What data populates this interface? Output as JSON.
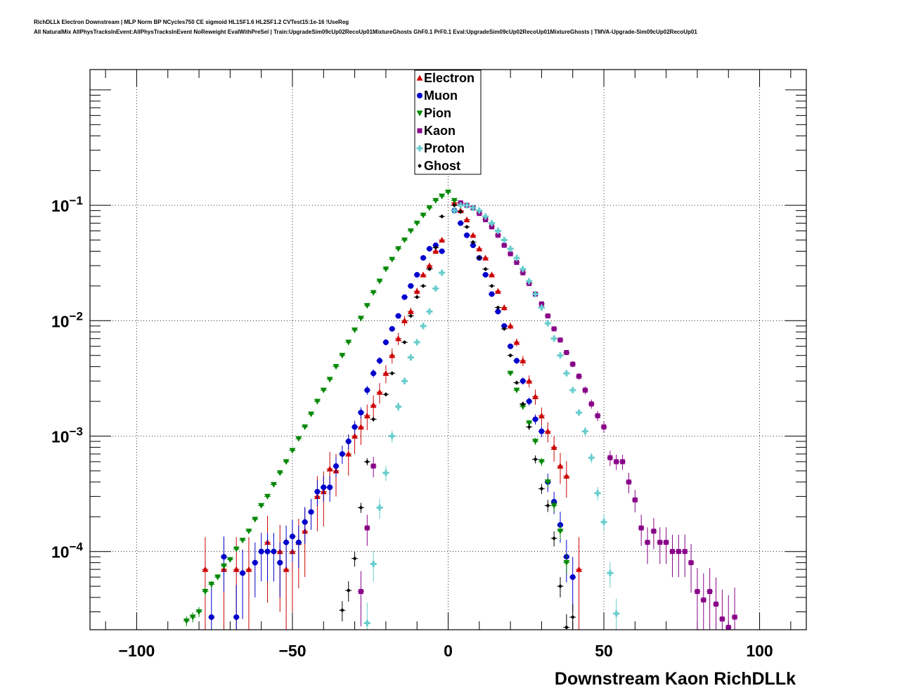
{
  "header": {
    "title_line1": "RichDLLk Electron Downstream | MLP Norm BP NCycles750 CE sigmoid HL1SF1.6 HL2SF1.2 CVTest15:1e-16 !UseReg",
    "title_line2": "All NaturalMix AllPhysTracksInEvent:AllPhysTracksInEvent NoReweight EvalWithPreSel | Train:UpgradeSim09cUp02RecoUp01MixtureGhosts GhF0.1 PrF0.1 Eval:UpgradeSim09cUp02RecoUp01MixtureGhosts | TMVA-Upgrade-Sim09cUp02RecoUp01"
  },
  "chart_data": {
    "type": "scatter",
    "xlabel": "Downstream Kaon RichDLLk",
    "ylabel": "",
    "xlim": [
      -115,
      115
    ],
    "ylim": [
      2.1e-05,
      1.5
    ],
    "log_y": true,
    "grid": true,
    "legend_position": "top-center",
    "x_ticks": [
      {
        "value": -100,
        "label": "−100"
      },
      {
        "value": -50,
        "label": "−50"
      },
      {
        "value": 0,
        "label": "0"
      },
      {
        "value": 50,
        "label": "50"
      },
      {
        "value": 100,
        "label": "100"
      }
    ],
    "y_ticks": [
      {
        "value": 0.1,
        "base": "10",
        "exp": "−1"
      },
      {
        "value": 0.01,
        "base": "10",
        "exp": "−2"
      },
      {
        "value": 0.001,
        "base": "10",
        "exp": "−3"
      },
      {
        "value": 0.0001,
        "base": "10",
        "exp": "−4"
      }
    ],
    "series": [
      {
        "name": "Electron",
        "color": "#cc0000",
        "marker": "triangle-up",
        "x": [
          -78,
          -72,
          -68,
          -64,
          -58,
          -54,
          -52,
          -50,
          -48,
          -46,
          -42,
          -40,
          -38,
          -36,
          -32,
          -30,
          -28,
          -26,
          -24,
          -22,
          -20,
          -18,
          -16,
          -14,
          -12,
          -10,
          -8,
          -6,
          -4,
          -2,
          2,
          4,
          6,
          8,
          10,
          12,
          14,
          16,
          18,
          20,
          22,
          24,
          26,
          28,
          30,
          32,
          34,
          36,
          38,
          42
        ],
        "y": [
          7e-05,
          7e-05,
          7e-05,
          7e-05,
          0.00012,
          0.0001,
          7e-05,
          0.0001,
          0.00012,
          0.00015,
          0.0003,
          0.00033,
          0.00052,
          0.0005,
          0.0007,
          0.001,
          0.0012,
          0.0015,
          0.00185,
          0.0024,
          0.0035,
          0.005,
          0.007,
          0.01,
          0.012,
          0.018,
          0.025,
          0.03,
          0.04,
          0.05,
          0.105,
          0.09,
          0.075,
          0.055,
          0.042,
          0.035,
          0.025,
          0.018,
          0.013,
          0.009,
          0.0065,
          0.0045,
          0.003,
          0.0022,
          0.0015,
          0.0011,
          0.0008,
          0.00055,
          0.00045,
          7e-05
        ],
        "yerr_rel": [
          0.9,
          0.9,
          0.9,
          0.9,
          0.7,
          0.7,
          0.9,
          0.7,
          0.6,
          0.6,
          0.5,
          0.5,
          0.4,
          0.4,
          0.35,
          0.3,
          0.3,
          0.25,
          0.22,
          0.2,
          0.18,
          0.15,
          0.12,
          0.1,
          0.08,
          0.07,
          0.05,
          0.05,
          0.04,
          0.03,
          0.02,
          0.02,
          0.02,
          0.03,
          0.03,
          0.03,
          0.04,
          0.05,
          0.06,
          0.07,
          0.08,
          0.1,
          0.12,
          0.15,
          0.18,
          0.2,
          0.25,
          0.3,
          0.35,
          0.9
        ]
      },
      {
        "name": "Muon",
        "color": "#0000cc",
        "marker": "circle",
        "x": [
          -76,
          -72,
          -68,
          -66,
          -62,
          -60,
          -58,
          -56,
          -54,
          -52,
          -50,
          -48,
          -46,
          -44,
          -42,
          -40,
          -38,
          -36,
          -34,
          -32,
          -30,
          -28,
          -26,
          -24,
          -22,
          -20,
          -18,
          -16,
          -14,
          -12,
          -10,
          -8,
          -6,
          -4,
          -2,
          2,
          4,
          6,
          8,
          10,
          12,
          14,
          16,
          18,
          20,
          22,
          24,
          26,
          28,
          30,
          32,
          34,
          36,
          38,
          40
        ],
        "y": [
          2.7e-05,
          9e-05,
          2.7e-05,
          6.5e-05,
          8e-05,
          0.0001,
          0.0001,
          0.0001,
          8e-05,
          0.00012,
          0.000135,
          0.00012,
          0.00018,
          0.00022,
          0.00033,
          0.00036,
          0.00036,
          0.00055,
          0.0007,
          0.0009,
          0.0012,
          0.0016,
          0.0025,
          0.0035,
          0.0045,
          0.0065,
          0.0085,
          0.011,
          0.016,
          0.02,
          0.025,
          0.035,
          0.042,
          0.045,
          0.04,
          0.09,
          0.07,
          0.055,
          0.045,
          0.035,
          0.025,
          0.017,
          0.012,
          0.009,
          0.006,
          0.0045,
          0.003,
          0.002,
          0.0014,
          0.0011,
          0.0004,
          0.00027,
          0.00017,
          9e-05,
          6e-05
        ],
        "yerr_rel": [
          0.9,
          0.5,
          0.9,
          0.6,
          0.5,
          0.45,
          0.45,
          0.45,
          0.5,
          0.4,
          0.4,
          0.4,
          0.35,
          0.3,
          0.25,
          0.25,
          0.25,
          0.2,
          0.18,
          0.15,
          0.13,
          0.11,
          0.09,
          0.08,
          0.07,
          0.06,
          0.05,
          0.04,
          0.03,
          0.03,
          0.02,
          0.02,
          0.02,
          0.02,
          0.02,
          0.01,
          0.01,
          0.02,
          0.02,
          0.02,
          0.03,
          0.03,
          0.04,
          0.04,
          0.05,
          0.06,
          0.07,
          0.08,
          0.1,
          0.11,
          0.18,
          0.22,
          0.3,
          0.4,
          0.5
        ]
      },
      {
        "name": "Pion",
        "color": "#008800",
        "marker": "triangle-down",
        "x": [
          -84,
          -82,
          -80,
          -78,
          -76,
          -74,
          -72,
          -70,
          -68,
          -66,
          -64,
          -62,
          -60,
          -58,
          -56,
          -54,
          -52,
          -50,
          -48,
          -46,
          -44,
          -42,
          -40,
          -38,
          -36,
          -34,
          -32,
          -30,
          -28,
          -26,
          -24,
          -22,
          -20,
          -18,
          -16,
          -14,
          -12,
          -10,
          -8,
          -6,
          -4,
          -2,
          0,
          2,
          20,
          22,
          24,
          26,
          28,
          30,
          32,
          34,
          36,
          38
        ],
        "y": [
          2.5e-05,
          2.7e-05,
          3e-05,
          4.5e-05,
          5.2e-05,
          6e-05,
          7.5e-05,
          8.5e-05,
          0.000105,
          0.000125,
          0.00015,
          0.00019,
          0.00025,
          0.0003,
          0.00038,
          0.00048,
          0.0006,
          0.00075,
          0.00095,
          0.0012,
          0.00155,
          0.002,
          0.0025,
          0.0031,
          0.004,
          0.005,
          0.0065,
          0.0083,
          0.0105,
          0.0135,
          0.0175,
          0.022,
          0.028,
          0.034,
          0.042,
          0.05,
          0.06,
          0.07,
          0.082,
          0.095,
          0.11,
          0.12,
          0.13,
          0.11,
          0.0035,
          0.0025,
          0.0018,
          0.0013,
          0.0009,
          0.0006,
          0.0004,
          0.00025,
          0.00015,
          8e-05
        ],
        "yerr_rel": [
          0.1,
          0.1,
          0.1,
          0.08,
          0.07,
          0.06,
          0.06,
          0.05,
          0.05,
          0.04,
          0.04,
          0.03,
          0.03,
          0.03,
          0.03,
          0.02,
          0.02,
          0.02,
          0.02,
          0.02,
          0.02,
          0.02,
          0.02,
          0.02,
          0.02,
          0.02,
          0.02,
          0.02,
          0.02,
          0.02,
          0.02,
          0.02,
          0.02,
          0.02,
          0.02,
          0.02,
          0.02,
          0.02,
          0.02,
          0.02,
          0.02,
          0.02,
          0.02,
          0.02,
          0.05,
          0.05,
          0.06,
          0.06,
          0.07,
          0.08,
          0.1,
          0.12,
          0.15,
          0.2
        ]
      },
      {
        "name": "Kaon",
        "color": "#880088",
        "marker": "square",
        "x": [
          -28,
          -26,
          -24,
          4,
          6,
          8,
          10,
          12,
          14,
          16,
          18,
          20,
          22,
          24,
          26,
          28,
          30,
          32,
          34,
          36,
          38,
          40,
          42,
          44,
          46,
          48,
          50,
          52,
          54,
          56,
          58,
          60,
          62,
          64,
          66,
          68,
          70,
          72,
          74,
          76,
          78,
          80,
          82,
          84,
          86,
          88,
          90,
          92
        ],
        "y": [
          4.5e-05,
          0.00016,
          0.00055,
          0.105,
          0.1,
          0.095,
          0.085,
          0.075,
          0.065,
          0.055,
          0.045,
          0.038,
          0.032,
          0.026,
          0.021,
          0.017,
          0.014,
          0.011,
          0.0085,
          0.0068,
          0.0053,
          0.0042,
          0.0033,
          0.0025,
          0.0019,
          0.0015,
          0.0012,
          0.00065,
          0.0006,
          0.0006,
          0.0004,
          0.00028,
          0.00016,
          0.00012,
          0.00015,
          0.00012,
          0.00012,
          0.0001,
          0.0001,
          0.0001,
          8e-05,
          4.5e-05,
          3.8e-05,
          4.5e-05,
          3.5e-05,
          2.6e-05,
          2.2e-05,
          2.7e-05
        ],
        "yerr_rel": [
          0.5,
          0.3,
          0.2,
          0.02,
          0.02,
          0.02,
          0.02,
          0.02,
          0.02,
          0.02,
          0.02,
          0.02,
          0.02,
          0.02,
          0.03,
          0.03,
          0.03,
          0.04,
          0.04,
          0.05,
          0.05,
          0.06,
          0.07,
          0.08,
          0.09,
          0.1,
          0.11,
          0.15,
          0.15,
          0.15,
          0.2,
          0.22,
          0.3,
          0.35,
          0.3,
          0.35,
          0.35,
          0.4,
          0.4,
          0.4,
          0.45,
          0.6,
          0.7,
          0.6,
          0.7,
          0.8,
          0.9,
          0.8
        ]
      },
      {
        "name": "Proton",
        "color": "#66cccc",
        "marker": "cross",
        "x": [
          -26,
          -24,
          -22,
          -20,
          -18,
          -16,
          -14,
          -12,
          -10,
          -8,
          -6,
          -4,
          -2,
          2,
          4,
          6,
          8,
          10,
          12,
          14,
          16,
          18,
          20,
          22,
          24,
          26,
          28,
          30,
          32,
          34,
          36,
          38,
          40,
          42,
          44,
          46,
          48,
          50,
          52,
          54
        ],
        "y": [
          2.4e-05,
          7.8e-05,
          0.00024,
          0.00048,
          0.001,
          0.0018,
          0.003,
          0.0048,
          0.0065,
          0.009,
          0.012,
          0.019,
          0.026,
          0.09,
          0.1,
          0.1,
          0.095,
          0.09,
          0.08,
          0.07,
          0.06,
          0.05,
          0.042,
          0.035,
          0.028,
          0.022,
          0.017,
          0.013,
          0.0095,
          0.007,
          0.005,
          0.0035,
          0.0025,
          0.0016,
          0.0011,
          0.00065,
          0.00032,
          0.00018,
          6.5e-05,
          2.9e-05
        ],
        "yerr_rel": [
          0.5,
          0.3,
          0.2,
          0.15,
          0.12,
          0.09,
          0.07,
          0.05,
          0.05,
          0.04,
          0.03,
          0.03,
          0.02,
          0.01,
          0.01,
          0.01,
          0.01,
          0.01,
          0.01,
          0.01,
          0.01,
          0.02,
          0.02,
          0.02,
          0.02,
          0.02,
          0.03,
          0.03,
          0.03,
          0.04,
          0.04,
          0.05,
          0.05,
          0.06,
          0.08,
          0.1,
          0.13,
          0.18,
          0.25,
          0.35
        ]
      },
      {
        "name": "Ghost",
        "color": "#000000",
        "marker": "diamond",
        "x": [
          -34,
          -32,
          -30,
          -28,
          -26,
          -24,
          -20,
          -18,
          -14,
          -12,
          -10,
          -8,
          -6,
          -4,
          -2,
          2,
          4,
          6,
          8,
          10,
          12,
          14,
          16,
          18,
          20,
          22,
          24,
          26,
          28,
          30,
          32,
          34,
          36,
          38,
          40
        ],
        "y": [
          3.1e-05,
          4.6e-05,
          8.7e-05,
          0.00024,
          0.0006,
          0.0014,
          0.0023,
          0.0035,
          0.0065,
          0.011,
          0.016,
          0.02,
          0.028,
          0.043,
          0.08,
          0.1,
          0.088,
          0.065,
          0.048,
          0.035,
          0.028,
          0.02,
          0.013,
          0.0085,
          0.005,
          0.0029,
          0.0019,
          0.0012,
          0.00063,
          0.00035,
          0.00025,
          0.00013,
          5e-05,
          2.2e-05,
          2.7e-05
        ],
        "yerr_rel": [
          0.2,
          0.2,
          0.15,
          0.1,
          0.07,
          0.05,
          0.04,
          0.04,
          0.03,
          0.03,
          0.02,
          0.02,
          0.02,
          0.02,
          0.01,
          0.01,
          0.01,
          0.01,
          0.01,
          0.01,
          0.02,
          0.02,
          0.02,
          0.03,
          0.03,
          0.04,
          0.05,
          0.06,
          0.08,
          0.1,
          0.12,
          0.15,
          0.2,
          0.3,
          0.3
        ]
      }
    ]
  }
}
